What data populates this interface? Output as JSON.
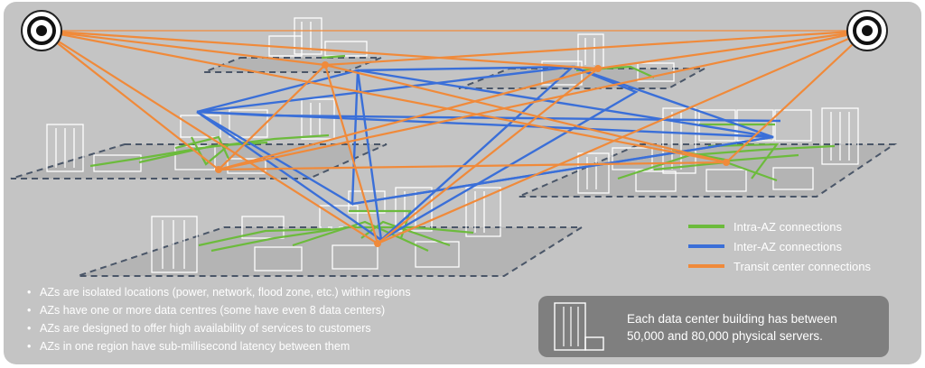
{
  "legend": {
    "intra": {
      "label": "Intra-AZ connections",
      "color": "#6cbb3c"
    },
    "inter": {
      "label": "Inter-AZ connections",
      "color": "#3a6fd8"
    },
    "transit": {
      "label": "Transit center connections",
      "color": "#f08a3a"
    }
  },
  "bullets": [
    "AZs are isolated locations (power, network, flood zone, etc.) within regions",
    "AZs have one or more data centres (some have even 8 data centers)",
    "AZs are designed to offer high availability of services to customers",
    "AZs in one region have sub-millisecond latency between them"
  ],
  "info_box": {
    "line1": "Each data center building has between",
    "line2": "50,000 and 80,000 physical servers.",
    "icon": "data-center-building-icon"
  },
  "transit_centers": [
    {
      "icon": "transit-center-target-icon"
    },
    {
      "icon": "transit-center-target-icon"
    }
  ],
  "colors": {
    "panel": "#c4c4c4",
    "info_box": "#7f7f7f",
    "platform_border": "#4a5668"
  }
}
